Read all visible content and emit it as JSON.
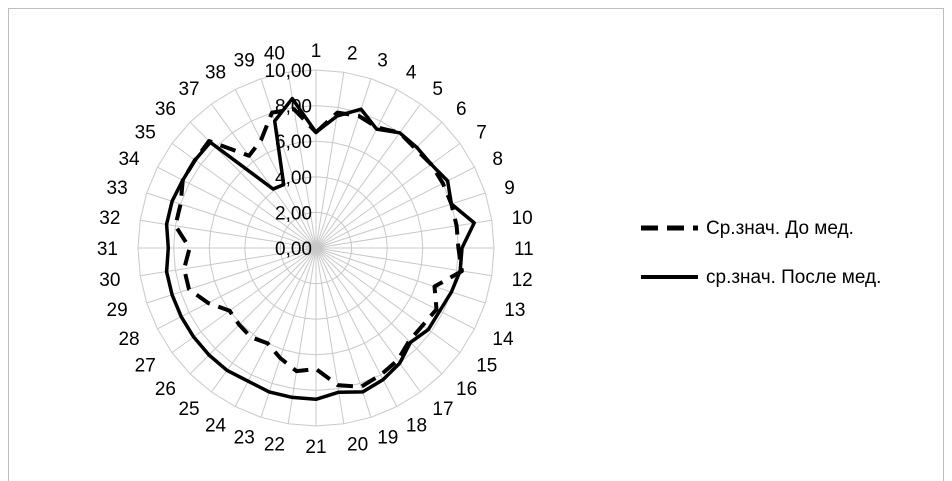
{
  "chart_data": {
    "type": "radar",
    "categories": [
      "1",
      "2",
      "3",
      "4",
      "5",
      "6",
      "7",
      "8",
      "9",
      "10",
      "11",
      "12",
      "13",
      "14",
      "15",
      "16",
      "17",
      "18",
      "19",
      "20",
      "21",
      "22",
      "23",
      "24",
      "25",
      "26",
      "27",
      "28",
      "29",
      "30",
      "31",
      "32",
      "33",
      "34",
      "35",
      "36",
      "37",
      "38",
      "39",
      "40"
    ],
    "r_ticks": [
      "0,00",
      "2,00",
      "4,00",
      "6,00",
      "8,00",
      "10,00"
    ],
    "r_range": [
      0,
      10
    ],
    "grid": true,
    "legend_position": "right",
    "series": [
      {
        "name": "Ср.знач. До мед.",
        "line_style": "dashed",
        "color": "#000000",
        "values": [
          6.5,
          7.7,
          7.8,
          7.6,
          8.0,
          7.9,
          8.0,
          8.0,
          8.0,
          8.0,
          8.0,
          8.3,
          7.0,
          7.6,
          7.4,
          7.4,
          7.8,
          8.0,
          8.2,
          7.8,
          6.8,
          7.0,
          6.5,
          6.0,
          6.2,
          6.1,
          6.0,
          6.8,
          7.5,
          7.5,
          7.1,
          8.0,
          8.0,
          8.4,
          8.4,
          8.5,
          6.4,
          6.8,
          8.0,
          7.9
        ]
      },
      {
        "name": "ср.знач. После мед.",
        "line_style": "solid",
        "color": "#000000",
        "values": [
          6.5,
          7.5,
          8.2,
          7.5,
          8.0,
          8.0,
          8.0,
          8.3,
          8.0,
          9.0,
          8.2,
          8.2,
          8.0,
          7.8,
          7.8,
          7.5,
          8.0,
          8.3,
          8.5,
          8.2,
          8.5,
          8.5,
          8.5,
          8.4,
          8.5,
          8.5,
          8.5,
          8.5,
          8.5,
          8.5,
          8.3,
          8.5,
          8.5,
          8.4,
          8.4,
          8.4,
          4.1,
          4.0,
          7.5,
          8.5
        ]
      }
    ]
  }
}
